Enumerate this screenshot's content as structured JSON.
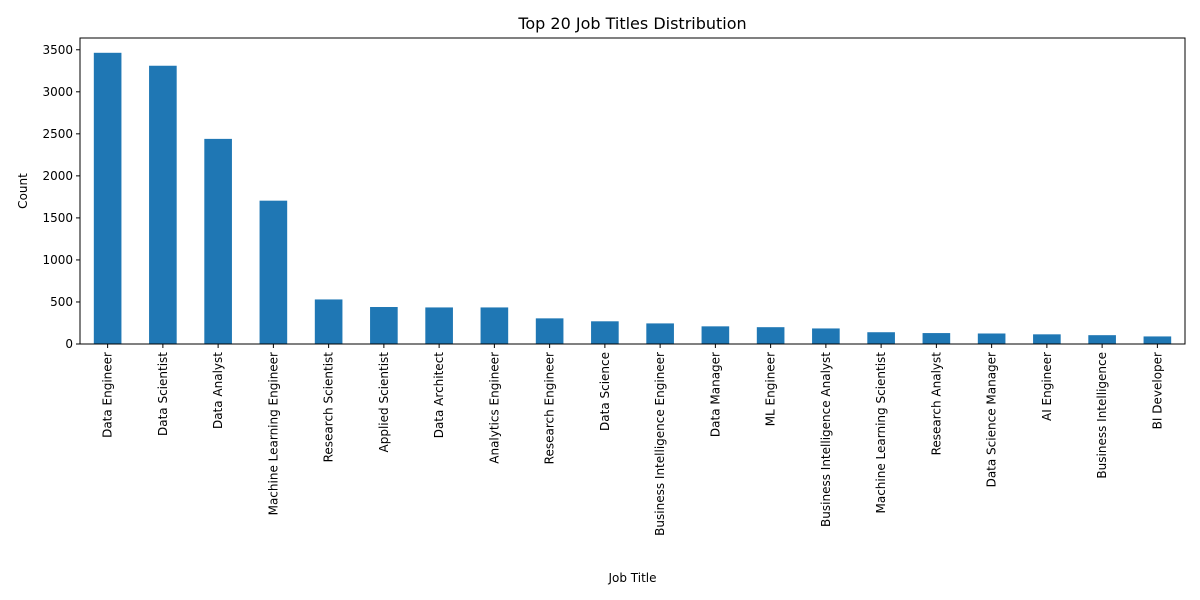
{
  "chart_data": {
    "type": "bar",
    "title": "Top 20 Job Titles Distribution",
    "xlabel": "Job Title",
    "ylabel": "Count",
    "ylim": [
      0,
      3640
    ],
    "yticks": [
      0,
      500,
      1000,
      1500,
      2000,
      2500,
      3000,
      3500
    ],
    "grid": false,
    "bar_color": "#1f77b4",
    "categories": [
      "Data Engineer",
      "Data Scientist",
      "Data Analyst",
      "Machine Learning Engineer",
      "Research Scientist",
      "Applied Scientist",
      "Data Architect",
      "Analytics Engineer",
      "Research Engineer",
      "Data Science",
      "Business Intelligence Engineer",
      "Data Manager",
      "ML Engineer",
      "Business Intelligence Analyst",
      "Machine Learning Scientist",
      "Research Analyst",
      "Data Science Manager",
      "AI Engineer",
      "Business Intelligence",
      "BI Developer"
    ],
    "values": [
      3464,
      3310,
      2440,
      1705,
      530,
      440,
      435,
      435,
      305,
      270,
      245,
      210,
      200,
      185,
      140,
      130,
      125,
      115,
      105,
      90
    ]
  }
}
